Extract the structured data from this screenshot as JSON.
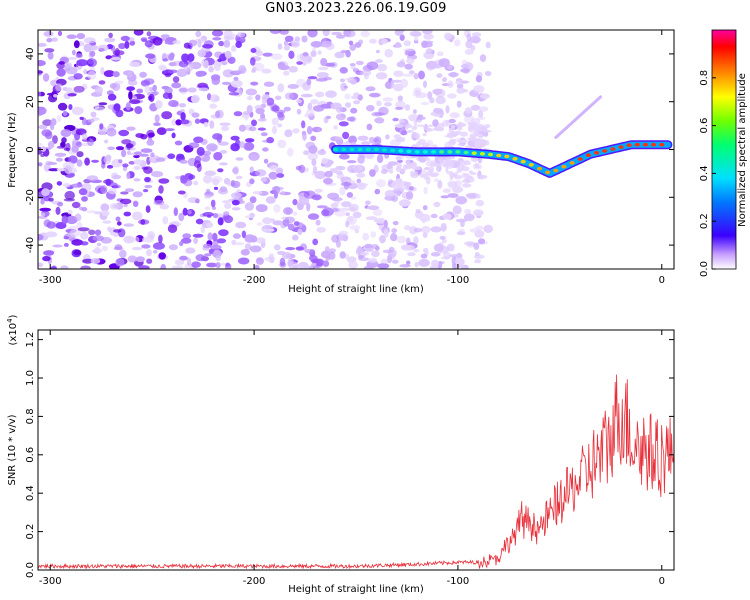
{
  "title": "GN03.2023.226.06.19.G09",
  "chart_data": [
    {
      "type": "heatmap",
      "xlabel": "Height of straight line (km)",
      "ylabel": "Frequency (Hz)",
      "xlim": [
        -306,
        6
      ],
      "ylim": [
        -50,
        50
      ],
      "xticks": [
        -300,
        -200,
        -100,
        0
      ],
      "xtick_labels": [
        "-300",
        "-200",
        "-100",
        "0"
      ],
      "yticks": [
        -40,
        -20,
        0,
        20,
        40
      ],
      "ytick_labels": [
        "-40",
        "-20",
        "0",
        "20",
        "40"
      ],
      "noise_region_x": [
        -306,
        -85
      ],
      "signal_track": {
        "x": [
          -160,
          -140,
          -120,
          -100,
          -85,
          -75,
          -65,
          -55,
          -45,
          -35,
          -25,
          -15,
          -5,
          3
        ],
        "y": [
          0,
          0,
          -1,
          -1,
          -2,
          -3,
          -6,
          -10,
          -6,
          -2,
          0,
          2,
          2,
          2
        ]
      },
      "secondary_track": {
        "x": [
          -52,
          -30
        ],
        "y": [
          5,
          22
        ]
      },
      "colorbar": {
        "label": "Normalized spectral amplitude",
        "range": [
          0,
          1
        ],
        "ticks": [
          0.0,
          0.2,
          0.4,
          0.6,
          0.8
        ],
        "tick_labels": [
          "0.0",
          "0.2",
          "0.4",
          "0.6",
          "0.8"
        ]
      },
      "colors": {
        "noise": "#6a00e0",
        "grid": "#000000"
      }
    },
    {
      "type": "line",
      "xlabel": "Height of straight line (km)",
      "ylabel": "SNR (10 * v/v)",
      "multiplier": "(x10^4)",
      "xlim": [
        -306,
        6
      ],
      "ylim": [
        0,
        1.25
      ],
      "xticks": [
        -300,
        -200,
        -100,
        0
      ],
      "xtick_labels": [
        "-300",
        "-200",
        "-100",
        "0"
      ],
      "yticks": [
        0,
        0.2,
        0.4,
        0.6,
        0.8,
        1.0,
        1.2
      ],
      "ytick_labels": [
        "0.0",
        "0.2",
        "0.4",
        "0.6",
        "0.8",
        "1.0",
        "1.2"
      ],
      "series": [
        {
          "color": "#e8303a",
          "envelope_x": [
            -306,
            -150,
            -120,
            -100,
            -90,
            -80,
            -72,
            -68,
            -60,
            -50,
            -40,
            -30,
            -25,
            -20,
            -15,
            -10,
            -5,
            0,
            4
          ],
          "envelope_y": [
            0.02,
            0.02,
            0.03,
            0.04,
            0.04,
            0.08,
            0.22,
            0.32,
            0.25,
            0.42,
            0.55,
            0.7,
            0.8,
            1.0,
            0.82,
            0.75,
            0.72,
            0.7,
            0.7
          ]
        }
      ]
    }
  ]
}
